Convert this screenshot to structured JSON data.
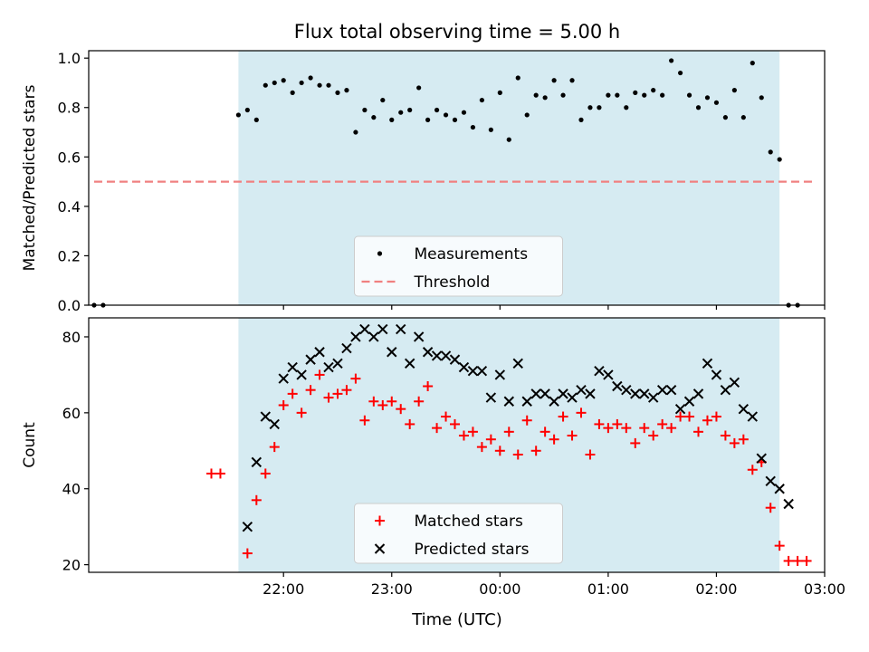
{
  "title": "Flux total observing time = 5.00 h",
  "xlabel": "Time (UTC)",
  "xticks": [
    "22:00",
    "23:00",
    "00:00",
    "01:00",
    "02:00",
    "03:00"
  ],
  "colors": {
    "observing_window": "#add8e6",
    "measurements": "#000000",
    "threshold": "#f08080",
    "matched": "#ff0000",
    "predicted": "#000000"
  },
  "chart_data": [
    {
      "type": "scatter",
      "ylabel": "Matched/Predicted stars",
      "ylim": [
        0,
        1.03
      ],
      "yticks": [
        "0.0",
        "0.2",
        "0.4",
        "0.6",
        "0.8",
        "1.0"
      ],
      "x_unit": "hours since 21:00 UTC",
      "xlim": [
        -0.8,
        6.0
      ],
      "observing_window": {
        "start": "21:35",
        "end": "02:35"
      },
      "threshold": {
        "value": 0.5,
        "from": "20:15",
        "to": "02:55"
      },
      "legend": {
        "placement": "lower center",
        "entries": [
          "Measurements",
          "Threshold"
        ]
      },
      "series": [
        {
          "name": "Measurements",
          "marker": "dot",
          "x": [
            "20:15",
            "20:20",
            "21:35",
            "21:40",
            "21:45",
            "21:50",
            "21:55",
            "22:00",
            "22:05",
            "22:10",
            "22:15",
            "22:20",
            "22:25",
            "22:30",
            "22:35",
            "22:40",
            "22:45",
            "22:50",
            "22:55",
            "23:00",
            "23:05",
            "23:10",
            "23:15",
            "23:20",
            "23:25",
            "23:30",
            "23:35",
            "23:40",
            "23:45",
            "23:50",
            "23:55",
            "00:00",
            "00:05",
            "00:10",
            "00:15",
            "00:20",
            "00:25",
            "00:30",
            "00:35",
            "00:40",
            "00:45",
            "00:50",
            "00:55",
            "01:00",
            "01:05",
            "01:10",
            "01:15",
            "01:20",
            "01:25",
            "01:30",
            "01:35",
            "01:40",
            "01:45",
            "01:50",
            "01:55",
            "02:00",
            "02:05",
            "02:10",
            "02:15",
            "02:20",
            "02:25",
            "02:30",
            "02:35",
            "02:40",
            "02:45"
          ],
          "y": [
            0.0,
            0.0,
            0.77,
            0.79,
            0.75,
            0.89,
            0.9,
            0.91,
            0.86,
            0.9,
            0.92,
            0.89,
            0.89,
            0.86,
            0.87,
            0.7,
            0.79,
            0.76,
            0.83,
            0.75,
            0.78,
            0.79,
            0.88,
            0.75,
            0.79,
            0.77,
            0.75,
            0.78,
            0.72,
            0.83,
            0.71,
            0.86,
            0.67,
            0.92,
            0.77,
            0.85,
            0.84,
            0.91,
            0.85,
            0.91,
            0.75,
            0.8,
            0.8,
            0.85,
            0.85,
            0.8,
            0.86,
            0.85,
            0.87,
            0.85,
            0.99,
            0.94,
            0.85,
            0.8,
            0.84,
            0.82,
            0.76,
            0.87,
            0.76,
            0.98,
            0.84,
            0.62,
            0.59,
            0.0,
            0.0
          ]
        }
      ]
    },
    {
      "type": "scatter",
      "ylabel": "Count",
      "ylim": [
        18,
        85
      ],
      "yticks": [
        "20",
        "40",
        "60",
        "80"
      ],
      "x_unit": "hours since 21:00 UTC",
      "xlim": [
        -0.8,
        6.0
      ],
      "observing_window": {
        "start": "21:35",
        "end": "02:35"
      },
      "legend": {
        "placement": "lower center",
        "entries": [
          "Matched stars",
          "Predicted stars"
        ]
      },
      "series": [
        {
          "name": "Matched stars",
          "marker": "plus",
          "x": [
            "21:20",
            "21:25",
            "21:40",
            "21:45",
            "21:50",
            "21:55",
            "22:00",
            "22:05",
            "22:10",
            "22:15",
            "22:20",
            "22:25",
            "22:30",
            "22:35",
            "22:40",
            "22:45",
            "22:50",
            "22:55",
            "23:00",
            "23:05",
            "23:10",
            "23:15",
            "23:20",
            "23:25",
            "23:30",
            "23:35",
            "23:40",
            "23:45",
            "23:50",
            "23:55",
            "00:00",
            "00:05",
            "00:10",
            "00:15",
            "00:20",
            "00:25",
            "00:30",
            "00:35",
            "00:40",
            "00:45",
            "00:50",
            "00:55",
            "01:00",
            "01:05",
            "01:10",
            "01:15",
            "01:20",
            "01:25",
            "01:30",
            "01:35",
            "01:40",
            "01:45",
            "01:50",
            "01:55",
            "02:00",
            "02:05",
            "02:10",
            "02:15",
            "02:20",
            "02:25",
            "02:30",
            "02:35",
            "02:40",
            "02:45",
            "02:50"
          ],
          "y": [
            44,
            44,
            23,
            37,
            44,
            51,
            62,
            65,
            60,
            66,
            70,
            64,
            65,
            66,
            69,
            58,
            63,
            62,
            63,
            61,
            57,
            63,
            67,
            56,
            59,
            57,
            54,
            55,
            51,
            53,
            50,
            55,
            49,
            58,
            50,
            55,
            53,
            59,
            54,
            60,
            49,
            57,
            56,
            57,
            56,
            52,
            56,
            54,
            57,
            56,
            59,
            59,
            55,
            58,
            59,
            54,
            52,
            53,
            45,
            47,
            35,
            25,
            21,
            21,
            21
          ]
        },
        {
          "name": "Predicted stars",
          "marker": "x",
          "x": [
            "21:40",
            "21:45",
            "21:50",
            "21:55",
            "22:00",
            "22:05",
            "22:10",
            "22:15",
            "22:20",
            "22:25",
            "22:30",
            "22:35",
            "22:40",
            "22:45",
            "22:50",
            "22:55",
            "23:00",
            "23:05",
            "23:10",
            "23:15",
            "23:20",
            "23:25",
            "23:30",
            "23:35",
            "23:40",
            "23:45",
            "23:50",
            "23:55",
            "00:00",
            "00:05",
            "00:10",
            "00:15",
            "00:20",
            "00:25",
            "00:30",
            "00:35",
            "00:40",
            "00:45",
            "00:50",
            "00:55",
            "01:00",
            "01:05",
            "01:10",
            "01:15",
            "01:20",
            "01:25",
            "01:30",
            "01:35",
            "01:40",
            "01:45",
            "01:50",
            "01:55",
            "02:00",
            "02:05",
            "02:10",
            "02:15",
            "02:20",
            "02:25",
            "02:30",
            "02:35",
            "02:40"
          ],
          "y": [
            30,
            47,
            59,
            57,
            69,
            72,
            70,
            74,
            76,
            72,
            73,
            77,
            80,
            82,
            80,
            82,
            76,
            82,
            73,
            80,
            76,
            75,
            75,
            74,
            72,
            71,
            71,
            64,
            70,
            63,
            73,
            63,
            65,
            65,
            63,
            65,
            64,
            66,
            65,
            71,
            70,
            67,
            66,
            65,
            65,
            64,
            66,
            66,
            61,
            63,
            65,
            73,
            70,
            66,
            68,
            61,
            59,
            48,
            42,
            40,
            36
          ]
        }
      ]
    }
  ]
}
